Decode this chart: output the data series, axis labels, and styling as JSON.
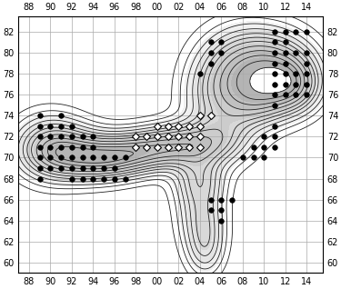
{
  "x_ticks": [
    "88",
    "90",
    "92",
    "94",
    "96",
    "98",
    "00",
    "02",
    "04",
    "06",
    "08",
    "10",
    "12",
    "14"
  ],
  "x_tick_vals": [
    88,
    90,
    92,
    94,
    96,
    98,
    100,
    102,
    104,
    106,
    108,
    110,
    112,
    114
  ],
  "y_ticks": [
    60,
    62,
    64,
    66,
    68,
    70,
    72,
    74,
    76,
    78,
    80,
    82
  ],
  "xlim": [
    87,
    115.5
  ],
  "ylim": [
    59.0,
    83.5
  ],
  "grid_color": "#aaaaaa",
  "contour_color": "#222222",
  "bg_color": "#ffffff",
  "black_dots": [
    [
      89,
      74
    ],
    [
      89,
      73
    ],
    [
      89,
      72
    ],
    [
      89,
      71
    ],
    [
      89,
      70
    ],
    [
      89,
      69
    ],
    [
      89,
      68
    ],
    [
      90,
      73
    ],
    [
      90,
      72
    ],
    [
      90,
      71
    ],
    [
      90,
      70
    ],
    [
      90,
      69
    ],
    [
      91,
      74
    ],
    [
      91,
      73
    ],
    [
      91,
      72
    ],
    [
      91,
      71
    ],
    [
      91,
      70
    ],
    [
      91,
      69
    ],
    [
      92,
      73
    ],
    [
      92,
      72
    ],
    [
      92,
      71
    ],
    [
      92,
      70
    ],
    [
      92,
      69
    ],
    [
      92,
      68
    ],
    [
      93,
      72
    ],
    [
      93,
      71
    ],
    [
      93,
      70
    ],
    [
      93,
      69
    ],
    [
      93,
      68
    ],
    [
      94,
      72
    ],
    [
      94,
      71
    ],
    [
      94,
      70
    ],
    [
      94,
      69
    ],
    [
      94,
      68
    ],
    [
      95,
      70
    ],
    [
      95,
      69
    ],
    [
      95,
      68
    ],
    [
      96,
      70
    ],
    [
      96,
      69
    ],
    [
      96,
      68
    ],
    [
      97,
      70
    ],
    [
      97,
      68
    ],
    [
      104,
      78
    ],
    [
      105,
      81
    ],
    [
      105,
      80
    ],
    [
      105,
      79
    ],
    [
      105,
      66
    ],
    [
      105,
      65
    ],
    [
      106,
      81
    ],
    [
      106,
      80
    ],
    [
      106,
      66
    ],
    [
      106,
      65
    ],
    [
      106,
      64
    ],
    [
      107,
      66
    ],
    [
      108,
      70
    ],
    [
      109,
      71
    ],
    [
      109,
      70
    ],
    [
      110,
      72
    ],
    [
      110,
      71
    ],
    [
      110,
      70
    ],
    [
      111,
      82
    ],
    [
      111,
      81
    ],
    [
      111,
      80
    ],
    [
      111,
      79
    ],
    [
      111,
      78
    ],
    [
      111,
      77
    ],
    [
      111,
      76
    ],
    [
      111,
      75
    ],
    [
      111,
      73
    ],
    [
      111,
      72
    ],
    [
      111,
      71
    ],
    [
      112,
      82
    ],
    [
      112,
      81
    ],
    [
      112,
      80
    ],
    [
      112,
      79
    ],
    [
      112,
      78
    ],
    [
      112,
      77
    ],
    [
      112,
      76
    ],
    [
      113,
      82
    ],
    [
      113,
      80
    ],
    [
      113,
      78
    ],
    [
      113,
      77
    ],
    [
      113,
      76
    ],
    [
      114,
      82
    ],
    [
      114,
      80
    ],
    [
      114,
      79
    ],
    [
      114,
      78
    ],
    [
      114,
      77
    ],
    [
      114,
      76
    ]
  ],
  "diamond_dots": [
    [
      98,
      72
    ],
    [
      99,
      72
    ],
    [
      100,
      72
    ],
    [
      101,
      72
    ],
    [
      102,
      72
    ],
    [
      103,
      72
    ],
    [
      104,
      72
    ],
    [
      98,
      71
    ],
    [
      99,
      71
    ],
    [
      100,
      71
    ],
    [
      101,
      71
    ],
    [
      102,
      71
    ],
    [
      103,
      71
    ],
    [
      104,
      71
    ],
    [
      100,
      73
    ],
    [
      101,
      73
    ],
    [
      102,
      73
    ],
    [
      103,
      73
    ],
    [
      104,
      73
    ],
    [
      105,
      74
    ],
    [
      104,
      74
    ]
  ]
}
